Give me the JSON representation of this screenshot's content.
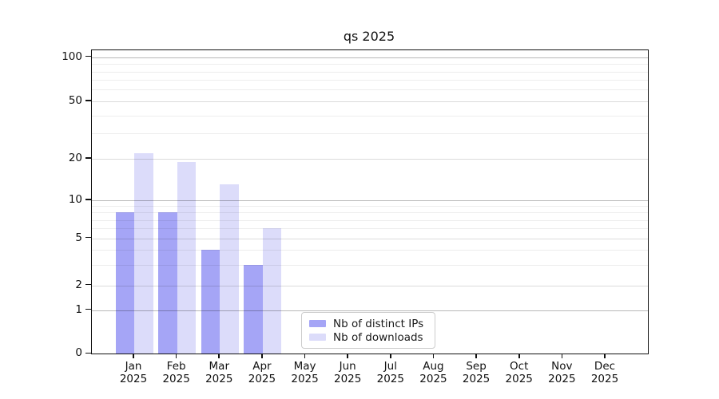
{
  "title": "qs 2025",
  "chart_data": {
    "type": "bar",
    "title": "qs 2025",
    "categories": [
      "Jan",
      "Feb",
      "Mar",
      "Apr",
      "May",
      "Jun",
      "Jul",
      "Aug",
      "Sep",
      "Oct",
      "Nov",
      "Dec"
    ],
    "category_year": "2025",
    "series": [
      {
        "name": "Nb of distinct IPs",
        "color": "#a5a5f6",
        "values": [
          8,
          8,
          4,
          3,
          0,
          0,
          0,
          0,
          0,
          0,
          0,
          0
        ]
      },
      {
        "name": "Nb of downloads",
        "color": "#dcdcfa",
        "values": [
          22,
          19,
          13,
          6,
          0,
          0,
          0,
          0,
          0,
          0,
          0,
          0
        ]
      }
    ],
    "yscale": "symlog",
    "ylim": [
      0,
      100
    ],
    "yticks": [
      0,
      1,
      2,
      5,
      10,
      20,
      50,
      100
    ],
    "yticks_decade": [
      1,
      10,
      100
    ],
    "yticks_minor": [
      3,
      4,
      6,
      7,
      8,
      9,
      30,
      40,
      60,
      70,
      80,
      90
    ],
    "grid": true,
    "legend_position": "lower-center"
  }
}
